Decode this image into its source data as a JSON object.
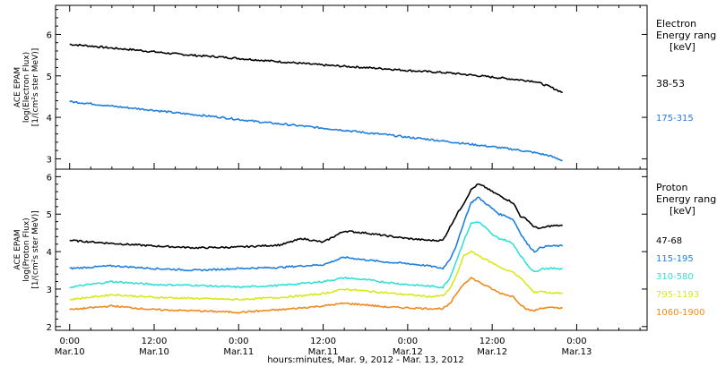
{
  "chart_data": [
    {
      "type": "line",
      "panel": "electron",
      "ylabel_lines": [
        "ACE EPAM",
        "log(Electron Flux)",
        "[1/(cm²s ster MeV)]"
      ],
      "ylim": [
        2.75,
        6.7
      ],
      "yticks": [
        3,
        4,
        5,
        6
      ],
      "legend_title": [
        "Electron",
        "Energy range",
        "[keV]"
      ],
      "series": [
        {
          "name": "38-53",
          "color": "#000000",
          "x_hours": [
            0,
            3,
            6,
            9,
            12,
            15,
            18,
            21,
            24,
            27,
            30,
            33,
            36,
            39,
            42,
            45,
            48,
            51,
            54,
            57,
            60,
            63,
            66,
            68,
            70
          ],
          "y": [
            5.76,
            5.72,
            5.67,
            5.63,
            5.58,
            5.53,
            5.49,
            5.46,
            5.42,
            5.38,
            5.34,
            5.3,
            5.26,
            5.23,
            5.2,
            5.17,
            5.13,
            5.1,
            5.07,
            5.02,
            4.97,
            4.92,
            4.87,
            4.75,
            4.6
          ]
        },
        {
          "name": "175-315",
          "color": "#1f7fe0",
          "x_hours": [
            0,
            3,
            6,
            9,
            12,
            15,
            18,
            21,
            24,
            27,
            30,
            33,
            36,
            39,
            42,
            45,
            48,
            51,
            54,
            57,
            60,
            63,
            66,
            68,
            70
          ],
          "y": [
            4.38,
            4.33,
            4.27,
            4.22,
            4.17,
            4.11,
            4.06,
            4.01,
            3.95,
            3.89,
            3.84,
            3.79,
            3.74,
            3.69,
            3.63,
            3.58,
            3.52,
            3.47,
            3.41,
            3.35,
            3.29,
            3.23,
            3.15,
            3.08,
            2.96
          ]
        }
      ]
    },
    {
      "type": "line",
      "panel": "proton",
      "ylabel_lines": [
        "ACE EPAM",
        "log(Proton Flux)",
        "[1/(cm²s ster MeV)]"
      ],
      "ylim": [
        1.9,
        6.2
      ],
      "yticks": [
        2,
        3,
        4,
        5,
        6
      ],
      "legend_title": [
        "Proton",
        "Energy range",
        "[keV]"
      ],
      "series": [
        {
          "name": "47-68",
          "color": "#000000",
          "x_hours": [
            0,
            6,
            12,
            18,
            24,
            30,
            33,
            36,
            39,
            42,
            45,
            48,
            51,
            53,
            54,
            55,
            56,
            57,
            58,
            59,
            60,
            61,
            62,
            63,
            64,
            65,
            66,
            67,
            68,
            70
          ],
          "y": [
            4.3,
            4.22,
            4.15,
            4.1,
            4.12,
            4.18,
            4.35,
            4.25,
            4.55,
            4.5,
            4.42,
            4.35,
            4.3,
            4.3,
            4.65,
            5.0,
            5.3,
            5.65,
            5.8,
            5.72,
            5.6,
            5.5,
            5.4,
            5.3,
            4.95,
            4.85,
            4.65,
            4.62,
            4.68,
            4.7
          ]
        },
        {
          "name": "115-195",
          "color": "#1f7fe0",
          "x_hours": [
            0,
            6,
            12,
            18,
            24,
            30,
            33,
            36,
            39,
            42,
            45,
            48,
            51,
            53,
            54,
            55,
            56,
            57,
            58,
            59,
            60,
            61,
            62,
            63,
            64,
            65,
            66,
            67,
            68,
            70
          ],
          "y": [
            3.55,
            3.62,
            3.55,
            3.5,
            3.55,
            3.58,
            3.62,
            3.65,
            3.85,
            3.78,
            3.72,
            3.68,
            3.62,
            3.55,
            3.8,
            4.2,
            4.8,
            5.3,
            5.45,
            5.3,
            5.15,
            5.0,
            4.95,
            4.85,
            4.5,
            4.2,
            4.0,
            4.12,
            4.15,
            4.15
          ]
        },
        {
          "name": "310-580",
          "color": "#33e0d8",
          "x_hours": [
            0,
            6,
            12,
            18,
            24,
            30,
            33,
            36,
            39,
            42,
            45,
            48,
            51,
            53,
            54,
            55,
            56,
            57,
            58,
            59,
            60,
            61,
            62,
            63,
            64,
            65,
            66,
            67,
            68,
            70
          ],
          "y": [
            3.05,
            3.2,
            3.12,
            3.1,
            3.05,
            3.1,
            3.15,
            3.2,
            3.3,
            3.25,
            3.18,
            3.12,
            3.08,
            3.05,
            3.3,
            3.8,
            4.3,
            4.75,
            4.8,
            4.65,
            4.45,
            4.35,
            4.3,
            4.2,
            3.9,
            3.65,
            3.45,
            3.55,
            3.55,
            3.55
          ]
        },
        {
          "name": "795-1193",
          "color": "#d8e81a",
          "x_hours": [
            0,
            6,
            12,
            18,
            24,
            30,
            33,
            36,
            39,
            42,
            45,
            48,
            51,
            53,
            54,
            55,
            56,
            57,
            58,
            59,
            60,
            61,
            62,
            63,
            64,
            65,
            66,
            67,
            68,
            70
          ],
          "y": [
            2.72,
            2.85,
            2.78,
            2.75,
            2.72,
            2.78,
            2.82,
            2.88,
            3.0,
            2.95,
            2.9,
            2.85,
            2.8,
            2.82,
            3.0,
            3.4,
            3.9,
            4.0,
            3.9,
            3.8,
            3.7,
            3.6,
            3.5,
            3.45,
            3.3,
            3.1,
            2.9,
            2.95,
            2.9,
            2.9
          ]
        },
        {
          "name": "1060-1900",
          "color": "#f08a1e",
          "x_hours": [
            0,
            6,
            12,
            18,
            24,
            30,
            33,
            36,
            39,
            42,
            45,
            48,
            51,
            53,
            54,
            55,
            56,
            57,
            58,
            59,
            60,
            61,
            62,
            63,
            64,
            65,
            66,
            67,
            68,
            70
          ],
          "y": [
            2.45,
            2.55,
            2.45,
            2.42,
            2.38,
            2.45,
            2.5,
            2.55,
            2.62,
            2.58,
            2.52,
            2.5,
            2.48,
            2.48,
            2.6,
            2.9,
            3.15,
            3.3,
            3.2,
            3.1,
            3.0,
            2.9,
            2.85,
            2.8,
            2.6,
            2.45,
            2.42,
            2.5,
            2.5,
            2.5
          ]
        }
      ]
    }
  ],
  "xaxis": {
    "xlim_hours": [
      -2,
      82
    ],
    "ticks": [
      {
        "hours": 0,
        "time": "0:00",
        "date": "Mar.10"
      },
      {
        "hours": 12,
        "time": "12:00",
        "date": "Mar.10"
      },
      {
        "hours": 24,
        "time": "0:00",
        "date": "Mar.11"
      },
      {
        "hours": 36,
        "time": "12:00",
        "date": "Mar.11"
      },
      {
        "hours": 48,
        "time": "0:00",
        "date": "Mar.12"
      },
      {
        "hours": 60,
        "time": "12:00",
        "date": "Mar.12"
      },
      {
        "hours": 72,
        "time": "0:00",
        "date": "Mar.13"
      }
    ],
    "label": "hours:minutes, Mar.  9, 2012 - Mar. 13, 2012"
  }
}
